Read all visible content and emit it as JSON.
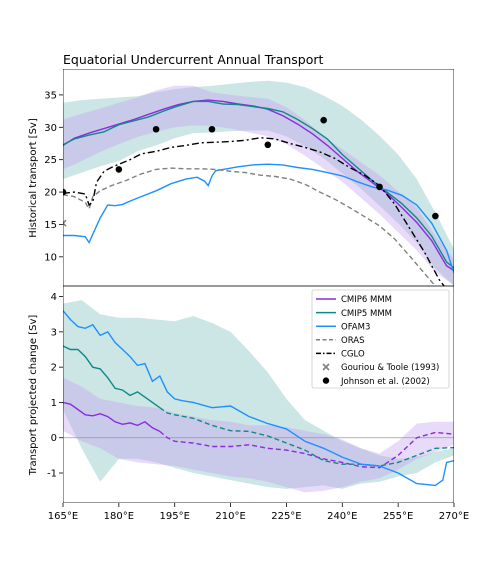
{
  "chart_data": [
    {
      "type": "line",
      "title": "Equatorial Undercurrent Annual Transport",
      "ylabel": "Historical transport [Sv]",
      "xlim": [
        165,
        270
      ],
      "ylim": [
        5.5,
        39
      ],
      "yticks": [
        10,
        15,
        20,
        25,
        30,
        35
      ],
      "grid": false,
      "series": [
        {
          "name": "CMIP6 MMM",
          "color": "#8a2be2",
          "style": "solid",
          "x": [
            165,
            168,
            172,
            176,
            180,
            184,
            188,
            192,
            196,
            200,
            204,
            208,
            212,
            216,
            220,
            224,
            228,
            232,
            236,
            240,
            244,
            248,
            252,
            256,
            260,
            264,
            268,
            270
          ],
          "y": [
            27.2,
            28.3,
            29.1,
            29.8,
            30.5,
            31.2,
            32.0,
            32.8,
            33.5,
            34.0,
            34.2,
            34.0,
            33.6,
            33.3,
            32.8,
            31.8,
            30.5,
            29.0,
            27.2,
            25.2,
            23.2,
            21.5,
            19.8,
            17.6,
            15.3,
            12.5,
            8.6,
            7.9
          ]
        },
        {
          "name": "CMIP5 MMM",
          "color": "#0f8a84",
          "style": "solid",
          "x": [
            165,
            168,
            172,
            176,
            180,
            184,
            188,
            192,
            196,
            200,
            204,
            208,
            212,
            216,
            220,
            224,
            228,
            232,
            236,
            240,
            244,
            248,
            252,
            256,
            260,
            264,
            268,
            270
          ],
          "y": [
            27.3,
            28.2,
            28.8,
            29.3,
            30.4,
            31.0,
            31.6,
            32.5,
            33.3,
            34.0,
            34.0,
            33.6,
            33.5,
            33.2,
            32.9,
            32.4,
            31.2,
            29.8,
            28.2,
            25.8,
            23.8,
            21.8,
            20.0,
            18.2,
            16.0,
            13.2,
            9.2,
            8.3
          ]
        },
        {
          "name": "OFAM3",
          "color": "#1e90ff",
          "style": "solid",
          "x": [
            165,
            168,
            171,
            172,
            173,
            175,
            177,
            179,
            181,
            183,
            186,
            190,
            194,
            198,
            201,
            203,
            204,
            205,
            206,
            209,
            212,
            216,
            220,
            224,
            228,
            232,
            236,
            240,
            244,
            248,
            252,
            256,
            260,
            264,
            268,
            270
          ],
          "y": [
            13.3,
            13.3,
            13.1,
            12.2,
            13.5,
            16.0,
            18.0,
            17.9,
            18.1,
            18.6,
            19.3,
            20.2,
            21.3,
            22.0,
            22.3,
            21.7,
            21.0,
            22.5,
            23.3,
            23.6,
            23.9,
            24.2,
            24.3,
            24.2,
            23.8,
            23.5,
            23.0,
            22.5,
            21.6,
            20.8,
            20.3,
            19.5,
            18.0,
            15.2,
            11.0,
            7.5
          ]
        },
        {
          "name": "ORAS",
          "color": "#808080",
          "style": "dashed",
          "x": [
            165,
            168,
            171,
            172,
            173,
            175,
            178,
            182,
            186,
            190,
            194,
            198,
            202,
            206,
            210,
            214,
            218,
            222,
            226,
            230,
            234,
            238,
            242,
            246,
            250,
            254,
            258,
            262,
            266,
            270
          ],
          "y": [
            19.6,
            19.3,
            18.4,
            17.4,
            19.3,
            20.2,
            21.0,
            21.8,
            22.8,
            23.5,
            23.7,
            23.6,
            23.6,
            23.5,
            23.2,
            23.0,
            22.6,
            22.4,
            22.0,
            21.2,
            20.0,
            18.9,
            17.6,
            16.2,
            14.8,
            12.8,
            10.2,
            7.5,
            4.8,
            3.5
          ]
        },
        {
          "name": "CGLO",
          "color": "#000000",
          "style": "dashdot",
          "x": [
            165,
            168,
            171,
            172,
            173,
            174,
            176,
            178,
            180,
            183,
            186,
            190,
            194,
            198,
            202,
            206,
            210,
            214,
            218,
            222,
            226,
            230,
            234,
            238,
            242,
            246,
            250,
            254,
            258,
            262,
            266,
            270
          ],
          "y": [
            19.8,
            20.0,
            19.7,
            18.0,
            18.5,
            21.5,
            23.2,
            23.8,
            24.3,
            25.0,
            25.9,
            26.3,
            26.9,
            27.2,
            27.6,
            27.7,
            27.8,
            28.0,
            28.4,
            28.2,
            27.5,
            26.9,
            26.2,
            25.2,
            23.8,
            22.6,
            21.0,
            18.2,
            14.5,
            10.8,
            6.5,
            3.5
          ]
        }
      ],
      "bands": [
        {
          "series": "CMIP5 MMM",
          "color": "#7fbfbd",
          "x": [
            165,
            170,
            175,
            180,
            185,
            190,
            195,
            200,
            205,
            210,
            215,
            220,
            225,
            230,
            235,
            240,
            245,
            250,
            255,
            260,
            265,
            270
          ],
          "upper": [
            33.8,
            34.2,
            34.4,
            34.6,
            34.8,
            35.4,
            35.9,
            36.2,
            36.4,
            36.7,
            37.0,
            37.2,
            36.9,
            36.2,
            34.9,
            33.3,
            31.2,
            28.7,
            25.8,
            22.0,
            16.8,
            11.2
          ],
          "lower": [
            22.0,
            23.0,
            24.0,
            24.8,
            26.3,
            27.2,
            28.3,
            29.1,
            29.2,
            29.4,
            29.5,
            29.5,
            28.6,
            27.1,
            25.2,
            22.9,
            20.5,
            17.9,
            15.2,
            12.2,
            8.2,
            5.5
          ]
        },
        {
          "series": "CMIP6 MMM",
          "color": "#c5a3f0",
          "x": [
            165,
            170,
            175,
            180,
            185,
            190,
            195,
            200,
            205,
            210,
            215,
            220,
            225,
            230,
            235,
            240,
            245,
            250,
            255,
            260,
            265,
            270
          ],
          "upper": [
            31.2,
            32.1,
            32.9,
            33.8,
            34.6,
            35.7,
            36.4,
            36.4,
            35.4,
            35.0,
            34.7,
            34.4,
            33.1,
            31.1,
            28.6,
            26.6,
            24.6,
            22.6,
            20.1,
            17.6,
            13.3,
            9.6
          ],
          "lower": [
            23.5,
            24.8,
            26.2,
            27.4,
            28.5,
            29.3,
            30.0,
            30.3,
            30.2,
            29.8,
            29.2,
            28.6,
            27.4,
            25.6,
            23.6,
            21.6,
            19.1,
            16.6,
            13.8,
            11.0,
            7.6,
            5.6
          ]
        }
      ],
      "observations": [
        {
          "name": "Gouriou & Toole (1993)",
          "marker": "x",
          "color": "#808080",
          "points": [
            {
              "x": 165,
              "y": 15.2
            }
          ]
        },
        {
          "name": "Johnson et al. (2002)",
          "marker": "o",
          "color": "#000000",
          "points": [
            {
              "x": 165,
              "y": 20.0
            },
            {
              "x": 180,
              "y": 23.5
            },
            {
              "x": 190,
              "y": 29.7
            },
            {
              "x": 205,
              "y": 29.7
            },
            {
              "x": 220,
              "y": 27.3
            },
            {
              "x": 235,
              "y": 31.1
            },
            {
              "x": 250,
              "y": 20.8
            },
            {
              "x": 265,
              "y": 16.3
            }
          ]
        }
      ]
    },
    {
      "type": "line",
      "title": "",
      "xlabel": "",
      "ylabel": "Transport projected change [Sv]",
      "xlim": [
        165,
        270
      ],
      "ylim": [
        -1.85,
        4.3
      ],
      "yticks": [
        -1,
        0,
        1,
        2,
        3,
        4
      ],
      "xticks": [
        165,
        180,
        195,
        210,
        225,
        240,
        255,
        270
      ],
      "xticklabels": [
        "165°E",
        "180°E",
        "195°E",
        "210°E",
        "225°E",
        "240°E",
        "255°E",
        "270°E"
      ],
      "zero_line": true,
      "grid": false,
      "legend_location": "upper right",
      "series": [
        {
          "name": "CMIP6 MMM",
          "color": "#8a2be2",
          "style": "solid-then-dashed",
          "x": [
            165,
            167,
            169,
            171,
            173,
            175,
            177,
            179,
            181,
            183,
            185,
            187,
            189,
            191,
            193,
            195,
            200,
            205,
            210,
            215,
            220,
            225,
            230,
            235,
            240,
            245,
            250,
            255,
            260,
            265,
            270
          ],
          "y": [
            1.0,
            0.95,
            0.8,
            0.65,
            0.62,
            0.68,
            0.6,
            0.45,
            0.38,
            0.42,
            0.35,
            0.45,
            0.28,
            0.18,
            0.0,
            -0.1,
            -0.15,
            -0.25,
            -0.25,
            -0.2,
            -0.3,
            -0.35,
            -0.45,
            -0.6,
            -0.7,
            -0.82,
            -0.85,
            -0.5,
            0.0,
            0.15,
            0.1
          ]
        },
        {
          "name": "CMIP5 MMM",
          "color": "#0f8a84",
          "style": "solid-then-dashed",
          "x": [
            165,
            167,
            169,
            171,
            173,
            175,
            177,
            179,
            181,
            183,
            185,
            187,
            189,
            191,
            193,
            195,
            200,
            205,
            210,
            215,
            220,
            225,
            230,
            235,
            240,
            245,
            250,
            255,
            260,
            265,
            270
          ],
          "y": [
            2.6,
            2.5,
            2.5,
            2.3,
            2.0,
            1.95,
            1.7,
            1.4,
            1.35,
            1.2,
            1.3,
            1.15,
            1.0,
            0.85,
            0.7,
            0.65,
            0.55,
            0.35,
            0.2,
            0.18,
            0.05,
            -0.15,
            -0.35,
            -0.65,
            -0.75,
            -0.75,
            -0.8,
            -0.7,
            -0.5,
            -0.3,
            -0.28
          ]
        },
        {
          "name": "OFAM3",
          "color": "#1e90ff",
          "style": "solid",
          "x": [
            165,
            167,
            169,
            171,
            173,
            175,
            177,
            179,
            181,
            183,
            185,
            187,
            189,
            191,
            193,
            195,
            197,
            200,
            205,
            210,
            215,
            220,
            225,
            230,
            235,
            240,
            245,
            250,
            255,
            260,
            265,
            267,
            268,
            270
          ],
          "y": [
            3.6,
            3.35,
            3.15,
            3.1,
            3.2,
            2.9,
            3.0,
            2.7,
            2.5,
            2.3,
            2.05,
            2.1,
            1.6,
            1.75,
            1.3,
            1.1,
            1.05,
            1.0,
            0.85,
            0.9,
            0.6,
            0.4,
            0.25,
            -0.1,
            -0.3,
            -0.55,
            -0.75,
            -0.8,
            -1.0,
            -1.3,
            -1.35,
            -1.2,
            -0.7,
            -0.65
          ]
        }
      ],
      "bands": [
        {
          "series": "CMIP5 MMM",
          "color": "#7fbfbd",
          "x": [
            165,
            170,
            175,
            180,
            185,
            190,
            195,
            200,
            205,
            210,
            215,
            220,
            225,
            230,
            235,
            240,
            245,
            250,
            255,
            260,
            265,
            270
          ],
          "upper": [
            3.8,
            3.9,
            3.5,
            3.4,
            3.4,
            3.35,
            3.3,
            3.45,
            3.25,
            3.0,
            2.45,
            1.85,
            1.1,
            0.5,
            0.2,
            -0.1,
            -0.3,
            -0.5,
            -0.6,
            -0.55,
            -0.4,
            -0.3
          ],
          "lower": [
            0.8,
            -0.3,
            -1.25,
            -0.6,
            -0.6,
            -0.7,
            -0.85,
            -1.0,
            -1.1,
            -1.2,
            -1.3,
            -1.4,
            -1.45,
            -1.4,
            -1.35,
            -1.45,
            -1.3,
            -1.25,
            -1.1,
            -1.0,
            -0.7,
            -0.5
          ]
        },
        {
          "series": "CMIP6 MMM",
          "color": "#c5a3f0",
          "x": [
            165,
            170,
            175,
            180,
            185,
            190,
            195,
            200,
            205,
            210,
            215,
            220,
            225,
            230,
            235,
            240,
            245,
            250,
            255,
            260,
            265,
            270
          ],
          "upper": [
            1.7,
            1.45,
            1.1,
            1.0,
            0.9,
            0.85,
            0.7,
            0.6,
            0.5,
            0.45,
            0.35,
            0.35,
            0.3,
            0.2,
            0.1,
            -0.05,
            -0.3,
            -0.45,
            -0.1,
            0.4,
            0.45,
            0.45
          ],
          "lower": [
            0.2,
            -0.1,
            -0.3,
            -0.6,
            -0.7,
            -0.75,
            -0.8,
            -0.9,
            -1.0,
            -1.1,
            -1.15,
            -1.25,
            -1.4,
            -1.55,
            -1.5,
            -1.4,
            -1.25,
            -1.15,
            -0.9,
            -0.6,
            -0.4,
            -0.2
          ]
        }
      ]
    }
  ]
}
